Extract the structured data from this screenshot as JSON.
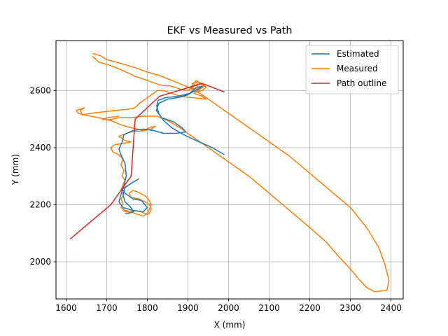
{
  "chart_data": {
    "type": "line",
    "title": "EKF vs Measured vs Path",
    "xlabel": "X (mm)",
    "ylabel": "Y (mm)",
    "xlim": [
      1575,
      2430
    ],
    "ylim": [
      1870,
      2775
    ],
    "xticks": [
      1600,
      1700,
      1800,
      1900,
      2000,
      2100,
      2200,
      2300,
      2400
    ],
    "yticks": [
      2000,
      2200,
      2400,
      2600
    ],
    "grid": true,
    "legend_position": "upper right",
    "series": [
      {
        "name": "Estimated",
        "color": "#1f77b4",
        "points": [
          [
            1990,
            2375
          ],
          [
            1960,
            2400
          ],
          [
            1920,
            2425
          ],
          [
            1890,
            2445
          ],
          [
            1860,
            2470
          ],
          [
            1840,
            2495
          ],
          [
            1828,
            2520
          ],
          [
            1823,
            2545
          ],
          [
            1826,
            2565
          ],
          [
            1845,
            2575
          ],
          [
            1875,
            2580
          ],
          [
            1905,
            2590
          ],
          [
            1925,
            2605
          ],
          [
            1935,
            2615
          ],
          [
            1920,
            2610
          ],
          [
            1900,
            2585
          ],
          [
            1875,
            2575
          ],
          [
            1850,
            2570
          ],
          [
            1828,
            2555
          ],
          [
            1822,
            2530
          ],
          [
            1835,
            2505
          ],
          [
            1865,
            2490
          ],
          [
            1885,
            2470
          ],
          [
            1895,
            2455
          ],
          [
            1870,
            2450
          ],
          [
            1840,
            2450
          ],
          [
            1815,
            2460
          ],
          [
            1790,
            2465
          ],
          [
            1765,
            2460
          ],
          [
            1742,
            2445
          ],
          [
            1738,
            2420
          ],
          [
            1730,
            2395
          ],
          [
            1735,
            2375
          ],
          [
            1745,
            2345
          ],
          [
            1748,
            2300
          ],
          [
            1742,
            2265
          ],
          [
            1735,
            2235
          ],
          [
            1730,
            2210
          ],
          [
            1740,
            2190
          ],
          [
            1765,
            2180
          ],
          [
            1790,
            2175
          ],
          [
            1800,
            2190
          ],
          [
            1785,
            2215
          ],
          [
            1765,
            2220
          ],
          [
            1745,
            2240
          ],
          [
            1738,
            2255
          ],
          [
            1755,
            2270
          ],
          [
            1778,
            2290
          ],
          [
            1760,
            2275
          ],
          [
            1745,
            2260
          ],
          [
            1740,
            2235
          ],
          [
            1745,
            2210
          ],
          [
            1760,
            2190
          ],
          [
            1765,
            2175
          ],
          [
            1755,
            2170
          ],
          [
            1745,
            2168
          ]
        ]
      },
      {
        "name": "Measured",
        "color": "#ff7f0e",
        "points": [
          [
            1665,
            2720
          ],
          [
            1680,
            2700
          ],
          [
            1705,
            2690
          ],
          [
            1740,
            2670
          ],
          [
            1770,
            2650
          ],
          [
            1800,
            2635
          ],
          [
            1830,
            2620
          ],
          [
            1860,
            2615
          ],
          [
            1880,
            2605
          ],
          [
            1900,
            2600
          ],
          [
            1915,
            2615
          ],
          [
            1930,
            2628
          ],
          [
            1945,
            2612
          ],
          [
            1935,
            2600
          ],
          [
            1920,
            2595
          ],
          [
            1930,
            2610
          ],
          [
            1910,
            2625
          ],
          [
            1925,
            2630
          ],
          [
            1940,
            2618
          ],
          [
            1925,
            2605
          ],
          [
            1905,
            2608
          ],
          [
            1920,
            2635
          ],
          [
            1940,
            2615
          ],
          [
            1925,
            2600
          ],
          [
            1915,
            2590
          ],
          [
            1935,
            2580
          ],
          [
            1945,
            2570
          ],
          [
            1910,
            2575
          ],
          [
            1880,
            2580
          ],
          [
            1860,
            2590
          ],
          [
            1840,
            2600
          ],
          [
            1825,
            2600
          ],
          [
            1810,
            2585
          ],
          [
            1795,
            2570
          ],
          [
            1780,
            2555
          ],
          [
            1770,
            2540
          ],
          [
            1755,
            2535
          ],
          [
            1720,
            2530
          ],
          [
            1690,
            2525
          ],
          [
            1660,
            2520
          ],
          [
            1640,
            2515
          ],
          [
            1635,
            2530
          ],
          [
            1645,
            2540
          ],
          [
            1625,
            2530
          ],
          [
            1630,
            2520
          ],
          [
            1660,
            2510
          ],
          [
            1680,
            2505
          ],
          [
            1710,
            2495
          ],
          [
            1735,
            2480
          ],
          [
            1760,
            2470
          ],
          [
            1790,
            2460
          ],
          [
            1805,
            2470
          ],
          [
            1820,
            2475
          ],
          [
            1810,
            2465
          ],
          [
            1785,
            2458
          ],
          [
            1760,
            2455
          ],
          [
            1740,
            2445
          ],
          [
            1730,
            2440
          ],
          [
            1745,
            2425
          ],
          [
            1760,
            2420
          ],
          [
            1740,
            2415
          ],
          [
            1720,
            2410
          ],
          [
            1710,
            2400
          ],
          [
            1715,
            2385
          ],
          [
            1730,
            2375
          ],
          [
            1740,
            2360
          ],
          [
            1735,
            2340
          ],
          [
            1742,
            2320
          ],
          [
            1738,
            2300
          ],
          [
            1745,
            2285
          ],
          [
            1740,
            2270
          ],
          [
            1735,
            2250
          ],
          [
            1742,
            2235
          ],
          [
            1735,
            2220
          ],
          [
            1740,
            2205
          ],
          [
            1735,
            2190
          ],
          [
            1745,
            2180
          ],
          [
            1760,
            2175
          ],
          [
            1770,
            2180
          ],
          [
            1785,
            2175
          ],
          [
            1800,
            2165
          ],
          [
            1805,
            2170
          ],
          [
            1810,
            2185
          ],
          [
            1805,
            2200
          ],
          [
            1795,
            2210
          ],
          [
            1780,
            2220
          ],
          [
            1760,
            2225
          ],
          [
            1755,
            2240
          ],
          [
            1765,
            2250
          ],
          [
            1775,
            2245
          ],
          [
            1790,
            2235
          ],
          [
            1800,
            2225
          ],
          [
            1810,
            2200
          ],
          [
            1805,
            2185
          ],
          [
            1800,
            2170
          ],
          [
            1790,
            2160
          ],
          [
            1780,
            2165
          ],
          [
            1765,
            2172
          ],
          [
            1750,
            2175
          ],
          [
            1738,
            2180
          ]
        ],
        "loop_points": [
          [
            1665,
            2730
          ],
          [
            1685,
            2722
          ],
          [
            1700,
            2708
          ],
          [
            1735,
            2695
          ],
          [
            1770,
            2680
          ],
          [
            1800,
            2665
          ],
          [
            1835,
            2650
          ],
          [
            1870,
            2630
          ],
          [
            1895,
            2615
          ],
          [
            1930,
            2590
          ],
          [
            1980,
            2540
          ],
          [
            2040,
            2480
          ],
          [
            2100,
            2420
          ],
          [
            2150,
            2370
          ],
          [
            2200,
            2310
          ],
          [
            2250,
            2250
          ],
          [
            2300,
            2190
          ],
          [
            2340,
            2120
          ],
          [
            2370,
            2050
          ],
          [
            2385,
            1990
          ],
          [
            2395,
            1935
          ],
          [
            2390,
            1900
          ],
          [
            2360,
            1895
          ],
          [
            2340,
            1910
          ],
          [
            2320,
            1940
          ],
          [
            2300,
            1975
          ],
          [
            2270,
            2020
          ],
          [
            2240,
            2070
          ],
          [
            2200,
            2120
          ],
          [
            2150,
            2180
          ],
          [
            2100,
            2240
          ],
          [
            2050,
            2300
          ],
          [
            2000,
            2350
          ],
          [
            1950,
            2400
          ],
          [
            1910,
            2440
          ],
          [
            1880,
            2470
          ],
          [
            1850,
            2495
          ],
          [
            1825,
            2510
          ],
          [
            1790,
            2510
          ],
          [
            1760,
            2505
          ],
          [
            1730,
            2505
          ],
          [
            1710,
            2498
          ],
          [
            1690,
            2498
          ],
          [
            1700,
            2505
          ],
          [
            1730,
            2510
          ]
        ]
      },
      {
        "name": "Path outline",
        "color": "#d62728",
        "points": [
          [
            1610,
            2080
          ],
          [
            1710,
            2200
          ],
          [
            1760,
            2300
          ],
          [
            1770,
            2500
          ],
          [
            1830,
            2580
          ],
          [
            1935,
            2625
          ],
          [
            1990,
            2595
          ]
        ]
      }
    ]
  }
}
